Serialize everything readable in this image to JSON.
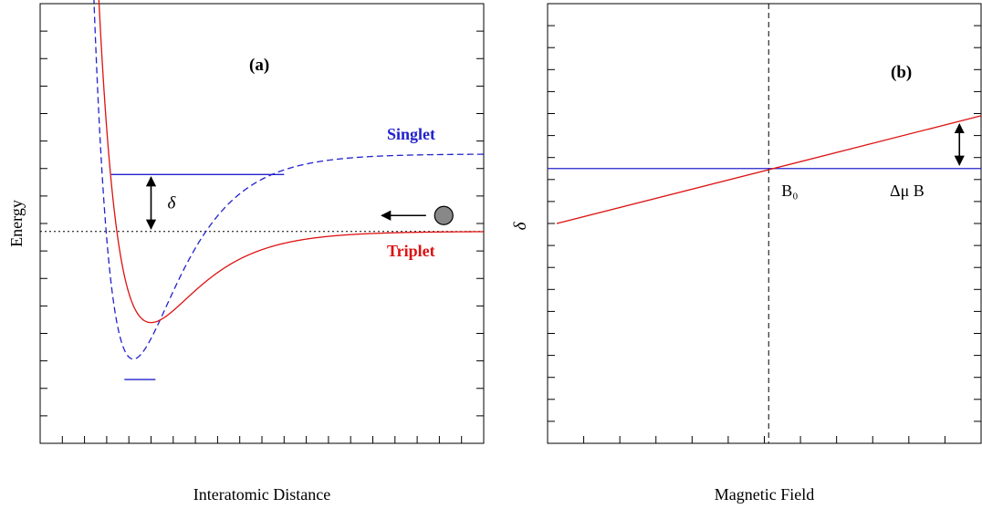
{
  "colors": {
    "singlet": "#2222cc",
    "triplet": "#dd1111",
    "frame": "#000000",
    "atom": "#888888"
  },
  "chart_data": [
    {
      "type": "line",
      "panel_label": "(a)",
      "xlabel": "Interatomic Distance",
      "ylabel": "Energy",
      "x_ticks_labeled": false,
      "y_ticks_labeled": false,
      "xlim": [
        0,
        10
      ],
      "ylim": [
        -9.3,
        10
      ],
      "series": [
        {
          "name": "Singlet",
          "style": "dashed",
          "color": "singlet",
          "form": "morse",
          "depth": 9.0,
          "r_e": 2.1,
          "a": 0.95,
          "asymptote": 3.4
        },
        {
          "name": "Triplet",
          "style": "solid",
          "color": "triplet",
          "form": "morse",
          "depth": 4.0,
          "r_e": 2.5,
          "a": 0.9,
          "asymptote": 0
        }
      ],
      "bound_levels": [
        {
          "series": "singlet",
          "energy": 2.5,
          "x_from": 1.6,
          "x_to": 5.5
        },
        {
          "series": "singlet",
          "energy": -6.5,
          "x_from": 1.9,
          "x_to": 2.6
        }
      ],
      "reference_line": {
        "energy": 0,
        "style": "dotted"
      },
      "annotations": {
        "delta_symbol": "δ",
        "delta_arrow": {
          "x": 2.5,
          "from": 2.5,
          "to": 0
        },
        "incoming_atom": {
          "x": 9.1,
          "energy": 0.7,
          "arrow_from_x": 8.7,
          "arrow_to_x": 7.7
        }
      }
    },
    {
      "type": "line",
      "panel_label": "(b)",
      "xlabel": "Magnetic Field",
      "ylabel": "δ",
      "x_ticks_labeled": false,
      "y_ticks_labeled": false,
      "xlim": [
        0,
        10
      ],
      "ylim": [
        -10,
        10
      ],
      "series": [
        {
          "name": "Singlet",
          "style": "solid",
          "color": "singlet",
          "x": [
            0,
            10
          ],
          "y": [
            2.5,
            2.5
          ]
        },
        {
          "name": "Triplet",
          "style": "solid",
          "color": "triplet",
          "x": [
            0,
            10
          ],
          "y": [
            0,
            4.9
          ]
        }
      ],
      "vertical_marker": {
        "x": 5.1,
        "style": "dashed",
        "label": "B₀"
      },
      "annotations": {
        "delta_mu_b_label": "Δμ B",
        "delta_mu_b_arrow": {
          "x": 9.5,
          "from": 2.5,
          "to": 4.6
        }
      }
    }
  ]
}
